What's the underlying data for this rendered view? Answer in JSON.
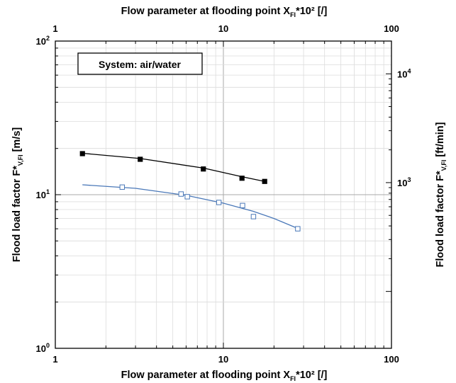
{
  "chart_data": {
    "type": "scatter",
    "x_scale": "log",
    "y_scale": "log",
    "xlim": [
      1,
      100
    ],
    "ylim": [
      1,
      100
    ],
    "y2lim": [
      0.03,
      20
    ],
    "x_label_bottom": {
      "main": "Flow parameter at flooding point X",
      "sub": "Fl",
      "tail": "*10² [/]"
    },
    "x_label_top": {
      "main": "Flow parameter at flooding point X",
      "sub": "Fl",
      "tail": "*10² [/]"
    },
    "y_label_left": {
      "main": "Flood load factor F*",
      "sub": "V,Fl",
      "tail": " [m/s]"
    },
    "y_label_right": {
      "main": "Flood load factor F*",
      "sub": "V,Fl",
      "tail": " [ft/min]"
    },
    "x_ticks": [
      {
        "value": 1,
        "label": "1"
      },
      {
        "value": 10,
        "label": "10"
      },
      {
        "value": 100,
        "label": "100"
      }
    ],
    "y_ticks": [
      {
        "value": 1,
        "base": "10",
        "exp": "0"
      },
      {
        "value": 10,
        "base": "10",
        "exp": "1"
      },
      {
        "value": 100,
        "base": "10",
        "exp": "2"
      }
    ],
    "y2_ticks": [
      {
        "value": 1000,
        "base": "10",
        "exp": "3"
      },
      {
        "value": 10000,
        "base": "10",
        "exp": "4"
      }
    ],
    "grid": true,
    "annotation": "System: air/water",
    "series": [
      {
        "marker": "filled-square",
        "color": "#000000",
        "line_color": "#000000",
        "points": [
          {
            "x": 1.45,
            "y": 18.5
          },
          {
            "x": 3.2,
            "y": 17.0
          },
          {
            "x": 7.6,
            "y": 14.7
          },
          {
            "x": 12.9,
            "y": 12.8
          },
          {
            "x": 17.6,
            "y": 12.2
          }
        ],
        "fit": [
          {
            "x": 1.45,
            "y": 18.6
          },
          {
            "x": 3.2,
            "y": 17.2
          },
          {
            "x": 7.6,
            "y": 14.9
          },
          {
            "x": 12.9,
            "y": 13.1
          },
          {
            "x": 17.6,
            "y": 12.2
          }
        ]
      },
      {
        "marker": "open-square",
        "color": "#4a78b8",
        "line_color": "#4a78b8",
        "points": [
          {
            "x": 2.5,
            "y": 11.2
          },
          {
            "x": 5.6,
            "y": 10.1
          },
          {
            "x": 6.1,
            "y": 9.7
          },
          {
            "x": 9.4,
            "y": 8.9
          },
          {
            "x": 13.0,
            "y": 8.5
          },
          {
            "x": 15.1,
            "y": 7.2
          },
          {
            "x": 27.7,
            "y": 6.0
          }
        ],
        "fit": [
          {
            "x": 1.45,
            "y": 11.6
          },
          {
            "x": 3.0,
            "y": 11.0
          },
          {
            "x": 6.0,
            "y": 9.9
          },
          {
            "x": 10.0,
            "y": 8.8
          },
          {
            "x": 15.0,
            "y": 7.8
          },
          {
            "x": 20.0,
            "y": 7.0
          },
          {
            "x": 28.0,
            "y": 6.0
          }
        ]
      }
    ]
  }
}
